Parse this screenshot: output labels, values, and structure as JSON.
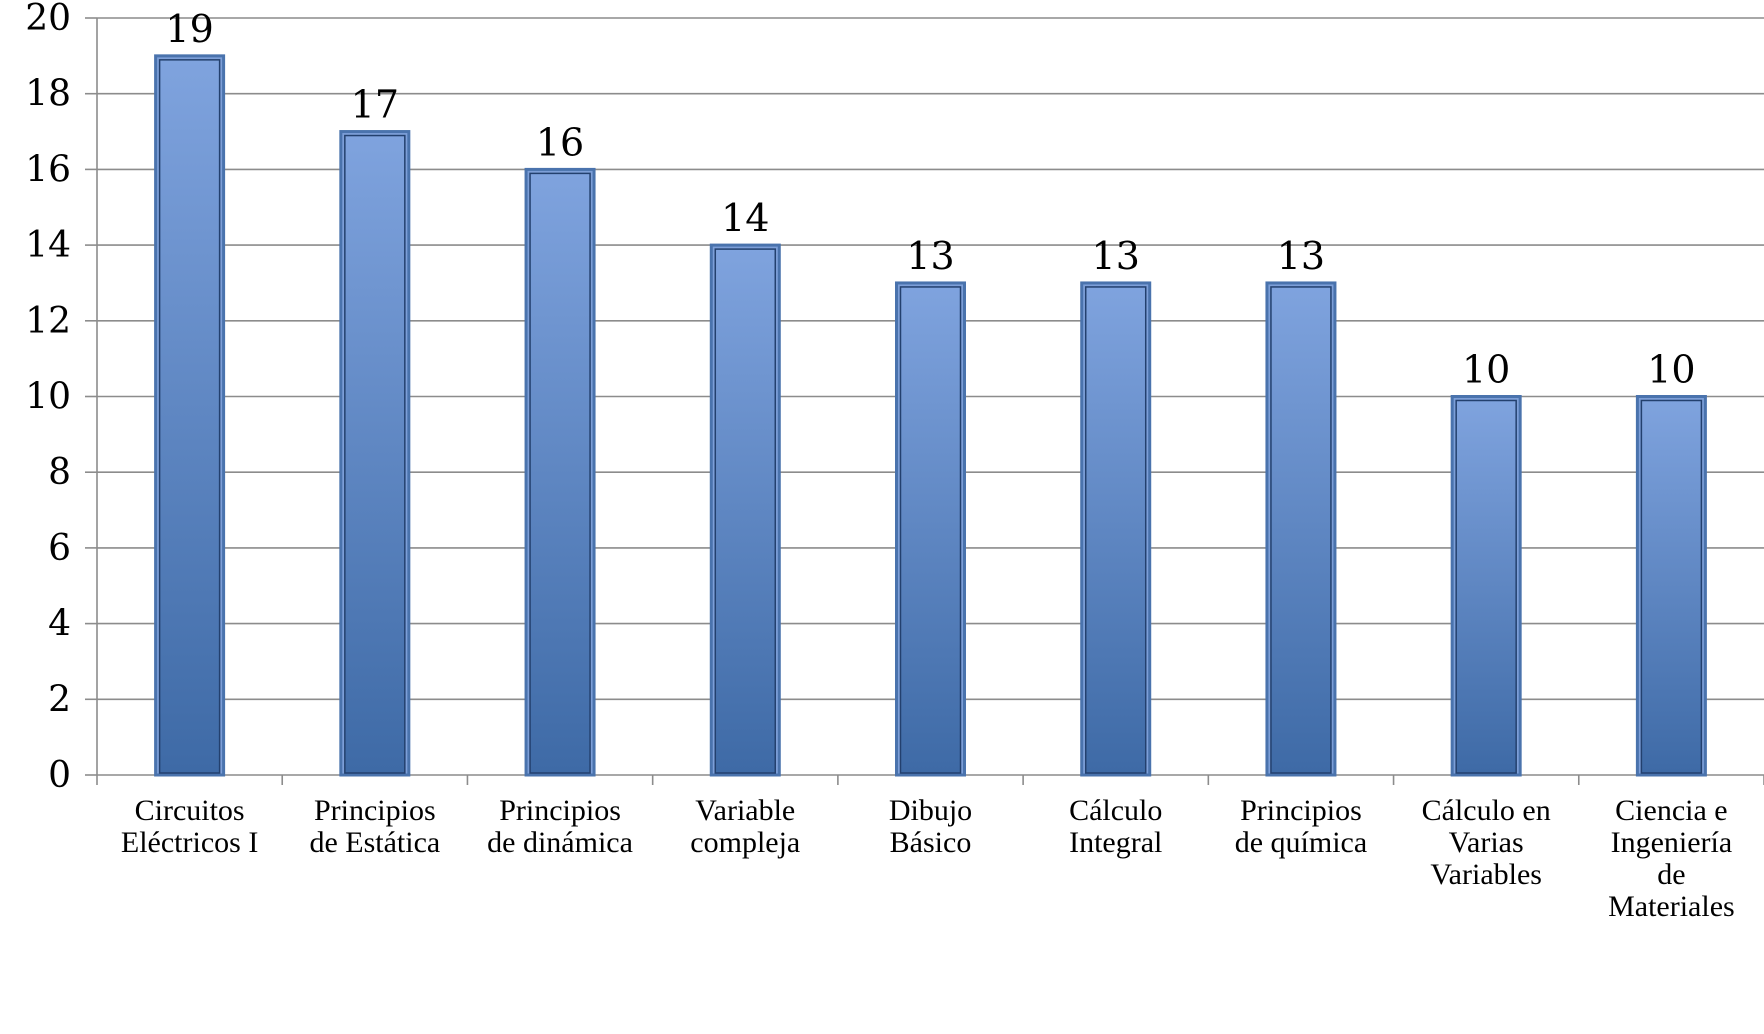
{
  "chart_data": {
    "type": "bar",
    "categories": [
      [
        "Circuitos",
        "Eléctricos I"
      ],
      [
        "Principios",
        "de Estática"
      ],
      [
        "Principios",
        "de dinámica"
      ],
      [
        "Variable",
        "compleja"
      ],
      [
        "Dibujo",
        "Básico"
      ],
      [
        "Cálculo",
        "Integral"
      ],
      [
        "Principios",
        "de química"
      ],
      [
        "Cálculo en",
        "Varias",
        "Variables"
      ],
      [
        "Ciencia e",
        "Ingeniería",
        "de",
        "Materiales"
      ]
    ],
    "values": [
      19,
      17,
      16,
      14,
      13,
      13,
      13,
      10,
      10
    ],
    "data_labels": [
      "19",
      "17",
      "16",
      "14",
      "13",
      "13",
      "13",
      "10",
      "10"
    ],
    "yticks": [
      0,
      2,
      4,
      6,
      8,
      10,
      12,
      14,
      16,
      18,
      20
    ],
    "ylim": [
      0,
      20
    ],
    "title": "",
    "xlabel": "",
    "ylabel": "",
    "grid": true,
    "legend": "none",
    "colors": {
      "bar": "#5b82c2",
      "bar_dark": "#3c6aa8",
      "bar_light": "#7fa3de",
      "grid": "#8c8c8c"
    }
  }
}
